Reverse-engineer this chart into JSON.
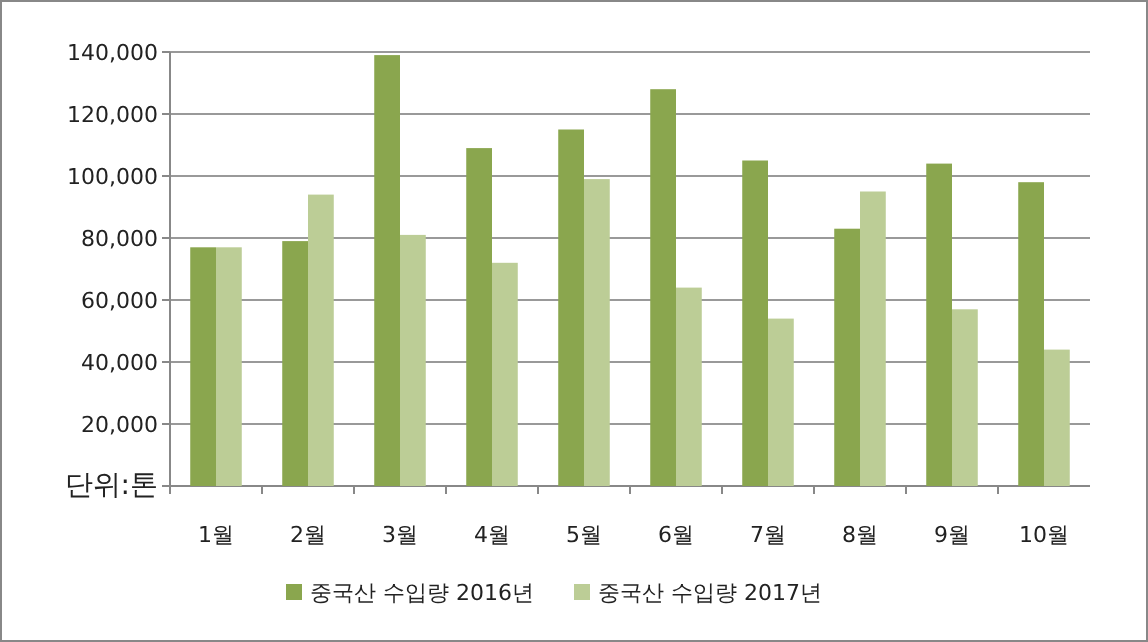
{
  "chart_data": {
    "type": "bar",
    "categories": [
      "1월",
      "2월",
      "3월",
      "4월",
      "5월",
      "6월",
      "7월",
      "8월",
      "9월",
      "10월"
    ],
    "series": [
      {
        "name": "중국산 수입량 2016년",
        "color": "#8aa64e",
        "values": [
          77000,
          79000,
          139000,
          109000,
          115000,
          128000,
          105000,
          83000,
          104000,
          98000
        ]
      },
      {
        "name": "중국산 수입량 2017년",
        "color": "#bccd96",
        "values": [
          77000,
          94000,
          81000,
          72000,
          99000,
          64000,
          54000,
          95000,
          57000,
          44000
        ]
      }
    ],
    "ylim": [
      0,
      140000
    ],
    "yticks": [
      {
        "value": 0,
        "label": "단위:톤"
      },
      {
        "value": 20000,
        "label": "20,000"
      },
      {
        "value": 40000,
        "label": "40,000"
      },
      {
        "value": 60000,
        "label": "60,000"
      },
      {
        "value": 80000,
        "label": "80,000"
      },
      {
        "value": 100000,
        "label": "100,000"
      },
      {
        "value": 120000,
        "label": "120,000"
      },
      {
        "value": 140000,
        "label": "140,000"
      }
    ],
    "grid": "y",
    "legend": "bottom"
  }
}
